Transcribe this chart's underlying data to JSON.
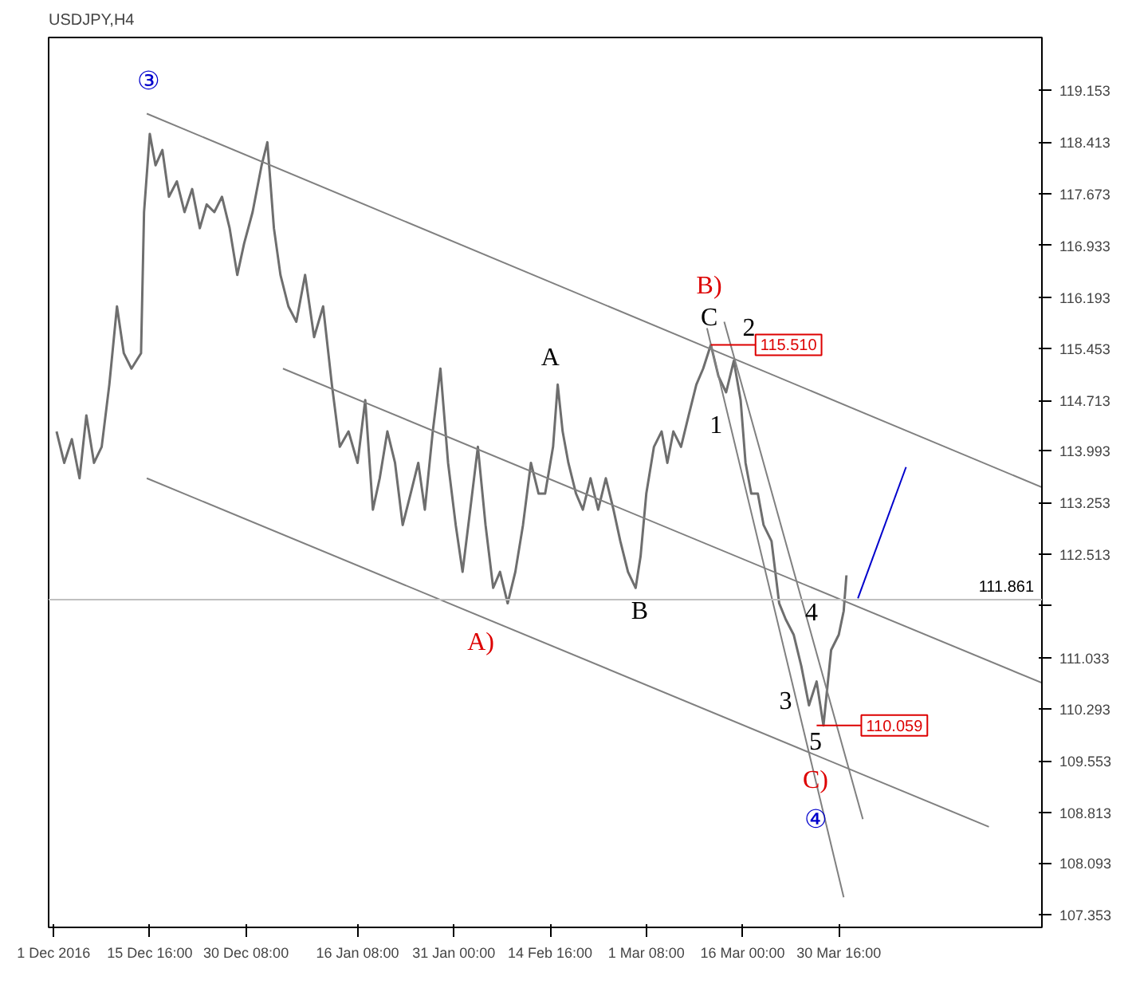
{
  "chart_data": {
    "type": "line",
    "title": "USDJPY,H4",
    "xlim": [
      "2016-11-30T06:00",
      "2017-04-30T15:00"
    ],
    "ylim": [
      107.17,
      119.91
    ],
    "xticks": [
      {
        "value": "2016-12-01T00:00",
        "label": "1 Dec 2016"
      },
      {
        "value": "2016-12-15T16:00",
        "label": "15 Dec 16:00"
      },
      {
        "value": "2016-12-30T08:00",
        "label": "30 Dec 08:00"
      },
      {
        "value": "2017-01-16T08:00",
        "label": "16 Jan 08:00"
      },
      {
        "value": "2017-01-31T00:00",
        "label": "31 Jan 00:00"
      },
      {
        "value": "2017-02-14T16:00",
        "label": "14 Feb 16:00"
      },
      {
        "value": "2017-03-01T08:00",
        "label": "1 Mar 08:00"
      },
      {
        "value": "2017-03-16T00:00",
        "label": "16 Mar 00:00"
      },
      {
        "value": "2017-03-30T16:00",
        "label": "30 Mar 16:00"
      }
    ],
    "yticks": [
      107.353,
      108.093,
      108.813,
      109.553,
      110.293,
      111.033,
      {
        "value": 111.773,
        "label": null
      },
      112.513,
      113.253,
      113.993,
      114.713,
      115.453,
      116.193,
      116.933,
      117.673,
      118.413,
      119.153
    ],
    "grid": false,
    "series": [
      {
        "color": "#6e6e6e",
        "x": [
          "2016-12-01T11:00",
          "2016-12-02T15:00",
          "2016-12-03T19:00",
          "2016-12-04T23:00",
          "2016-12-06T00:00",
          "2016-12-07T04:00",
          "2016-12-08T08:00",
          "2016-12-09T12:00",
          "2016-12-10T16:00",
          "2016-12-11T17:00",
          "2016-12-12T21:00",
          "2016-12-14T08:00",
          "2016-12-14T19:00",
          "2016-12-15T16:00",
          "2016-12-16T13:00",
          "2016-12-17T14:00",
          "2016-12-18T14:00",
          "2016-12-19T19:00",
          "2016-12-20T23:00",
          "2016-12-22T03:00",
          "2016-12-23T07:00",
          "2016-12-24T08:00",
          "2016-12-25T12:00",
          "2016-12-26T16:00",
          "2016-12-27T20:00",
          "2016-12-29T00:00",
          "2016-12-30T01:00",
          "2016-12-31T08:00",
          "2017-01-01T17:00",
          "2017-01-02T14:00",
          "2017-01-03T14:00",
          "2017-01-04T14:00",
          "2017-01-05T19:00",
          "2017-01-07T00:00",
          "2017-01-08T08:00",
          "2017-01-09T17:00",
          "2017-01-11T02:00",
          "2017-01-12T10:00",
          "2017-01-13T15:00",
          "2017-01-14T23:00",
          "2017-01-16T08:00",
          "2017-01-17T12:00",
          "2017-01-18T16:00",
          "2017-01-19T17:00",
          "2017-01-20T21:00",
          "2017-01-22T01:00",
          "2017-01-23T05:00",
          "2017-01-24T10:00",
          "2017-01-25T14:00",
          "2017-01-26T14:00",
          "2017-01-27T19:00",
          "2017-01-28T23:00",
          "2017-01-30T03:00",
          "2017-01-31T07:00",
          "2017-02-01T08:00",
          "2017-02-02T12:00",
          "2017-02-03T16:00",
          "2017-02-04T20:00",
          "2017-02-06T00:00",
          "2017-02-07T01:00",
          "2017-02-08T05:00",
          "2017-02-09T09:00",
          "2017-02-10T13:00",
          "2017-02-11T18:00",
          "2017-02-12T22:00",
          "2017-02-13T22:00",
          "2017-02-15T03:00",
          "2017-02-15T20:00",
          "2017-02-16T14:00",
          "2017-02-17T11:00",
          "2017-02-18T15:00",
          "2017-02-19T16:00",
          "2017-02-20T20:00",
          "2017-02-22T00:00",
          "2017-02-23T04:00",
          "2017-02-24T08:00",
          "2017-02-25T09:00",
          "2017-02-26T13:00",
          "2017-02-27T17:00",
          "2017-02-28T11:00",
          "2017-03-01T08:00",
          "2017-03-02T12:00",
          "2017-03-03T16:00",
          "2017-03-04T13:00",
          "2017-03-05T11:00",
          "2017-03-06T15:00",
          "2017-03-07T19:00",
          "2017-03-08T23:00",
          "2017-03-10T00:00",
          "2017-03-11T04:00",
          "2017-03-12T08:00",
          "2017-03-13T12:00",
          "2017-03-14T16:00",
          "2017-03-15T17:00",
          "2017-03-16T11:00",
          "2017-03-17T08:00",
          "2017-03-18T08:00",
          "2017-03-19T05:00",
          "2017-03-20T10:00",
          "2017-03-21T14:00",
          "2017-03-22T14:00",
          "2017-03-23T19:00",
          "2017-03-24T23:00",
          "2017-03-26T03:00",
          "2017-03-27T07:00",
          "2017-03-28T08:00",
          "2017-03-29T12:00",
          "2017-03-30T16:00",
          "2017-03-31T10:00",
          "2017-03-31T20:00"
        ],
        "values": [
          114.27,
          113.82,
          114.16,
          113.6,
          114.5,
          113.82,
          114.05,
          114.94,
          116.06,
          115.39,
          115.17,
          115.39,
          117.41,
          118.53,
          118.08,
          118.3,
          117.63,
          117.85,
          117.41,
          117.74,
          117.18,
          117.52,
          117.41,
          117.63,
          117.18,
          116.51,
          116.96,
          117.41,
          118.08,
          118.41,
          117.18,
          116.51,
          116.06,
          115.84,
          116.51,
          115.62,
          116.06,
          114.94,
          114.05,
          114.27,
          113.82,
          114.72,
          113.15,
          113.6,
          114.27,
          113.82,
          112.93,
          113.38,
          113.82,
          113.15,
          114.27,
          115.17,
          113.82,
          112.93,
          112.26,
          113.15,
          114.05,
          112.93,
          112.03,
          112.26,
          111.81,
          112.26,
          112.93,
          113.82,
          113.38,
          113.38,
          114.05,
          114.94,
          114.27,
          113.82,
          113.38,
          113.15,
          113.6,
          113.15,
          113.6,
          113.15,
          112.7,
          112.26,
          112.03,
          112.48,
          113.38,
          114.05,
          114.27,
          113.82,
          114.27,
          114.05,
          114.5,
          114.94,
          115.17,
          115.51,
          115.06,
          114.83,
          115.28,
          114.72,
          113.82,
          113.38,
          113.38,
          112.93,
          112.7,
          111.81,
          111.58,
          111.36,
          110.91,
          110.35,
          110.69,
          110.06,
          111.14,
          111.36,
          111.7,
          112.21
        ]
      },
      {
        "color": "#808080",
        "x": [
          "2016-12-15T05:00",
          "2017-04-30T15:00"
        ],
        "values": [
          118.82,
          113.47
        ]
      },
      {
        "color": "#808080",
        "x": [
          "2017-01-04T23:00",
          "2017-04-30T15:00"
        ],
        "values": [
          115.17,
          110.67
        ]
      },
      {
        "color": "#808080",
        "x": [
          "2016-12-15T05:00",
          "2017-04-22T13:00"
        ],
        "values": [
          113.6,
          108.61
        ]
      },
      {
        "color": "#808080",
        "x": [
          "2017-03-10T14:00",
          "2017-03-31T10:00"
        ],
        "values": [
          115.75,
          107.6
        ]
      },
      {
        "color": "#808080",
        "x": [
          "2017-03-13T05:00",
          "2017-04-03T08:00"
        ],
        "values": [
          115.84,
          108.72
        ]
      },
      {
        "color": "#0000cc",
        "x": [
          "2017-04-02T14:00",
          "2017-04-09T22:00"
        ],
        "values": [
          111.88,
          113.76
        ]
      }
    ],
    "ref_lines": [
      {
        "axis": "y",
        "value": 111.861,
        "label": "111.861",
        "color": "#c0c0c0"
      }
    ],
    "annotations": [
      "③",
      "A",
      "A)",
      "B",
      "B)",
      "C",
      "1",
      "2",
      "3",
      "4",
      "5",
      "C)",
      "④",
      {
        "text": "115.510",
        "x": "2017-03-11T04:00",
        "y": 115.51
      },
      {
        "text": "110.059",
        "x": "2017-03-27T07:00",
        "y": 110.06
      }
    ]
  }
}
